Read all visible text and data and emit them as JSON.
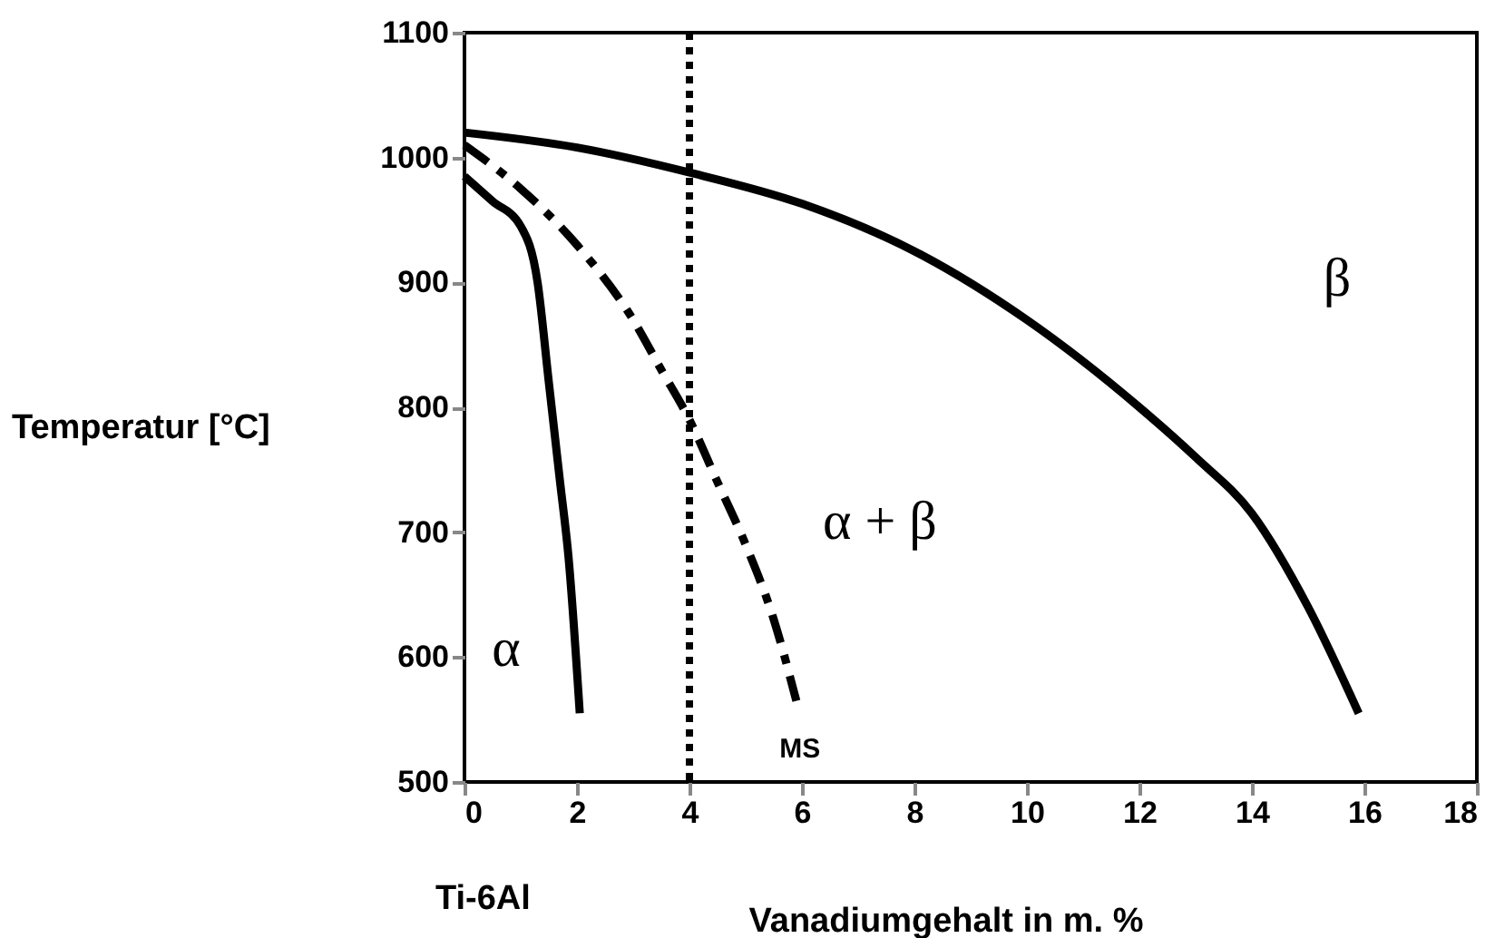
{
  "chart_data": {
    "type": "line",
    "xlabel": "Vanadiumgehalt in m. %",
    "ylabel": "Temperatur [°C]",
    "xlim": [
      0,
      18
    ],
    "xticks": [
      0,
      2,
      4,
      6,
      8,
      10,
      12,
      14,
      16,
      18
    ],
    "ylim": [
      500,
      1100
    ],
    "yticks": [
      500,
      600,
      700,
      800,
      900,
      1000,
      1100
    ],
    "grid": false,
    "marker": "none",
    "series": [
      {
        "color": "#000000",
        "line_style": "solid",
        "x": [
          0,
          2,
          4,
          6,
          8,
          10,
          12,
          13,
          14,
          15,
          15.9
        ],
        "values": [
          1020,
          1008,
          988,
          963,
          925,
          870,
          800,
          760,
          715,
          640,
          555
        ]
      },
      {
        "color": "#000000",
        "line_style": "solid",
        "x": [
          0,
          0.5,
          1,
          1.3,
          1.5,
          1.7,
          1.85,
          2.05
        ],
        "values": [
          985,
          965,
          945,
          900,
          820,
          740,
          680,
          555
        ]
      },
      {
        "name": "MS",
        "color": "#000000",
        "line_style": "dashed",
        "x": [
          0,
          1,
          2,
          3,
          3.5,
          4,
          4.5,
          5,
          5.5,
          5.9
        ],
        "values": [
          1010,
          975,
          930,
          870,
          830,
          790,
          740,
          690,
          630,
          565
        ]
      }
    ],
    "ref_lines": [
      {
        "axis": "x",
        "value": 4,
        "line_style": "dotted",
        "color": "#000000"
      }
    ],
    "annotations": [
      "β",
      "α + β",
      "α",
      "Ti-6Al"
    ]
  }
}
